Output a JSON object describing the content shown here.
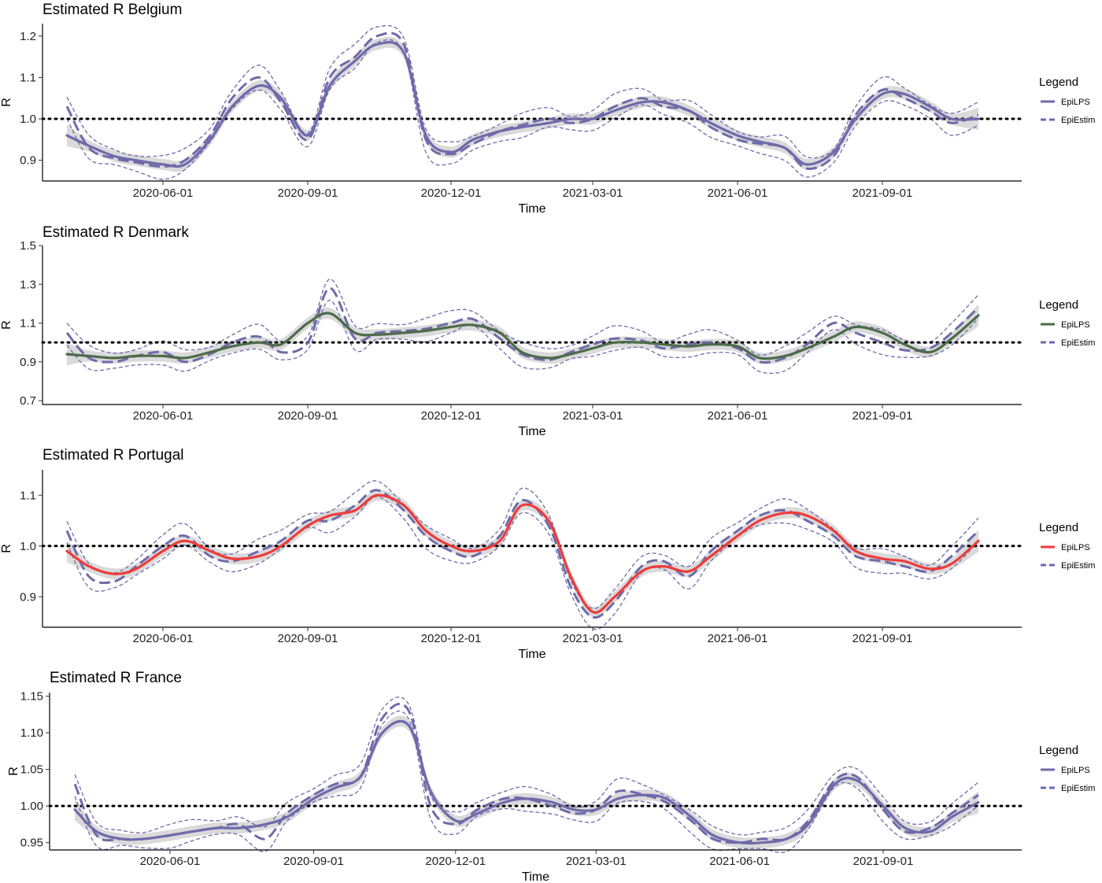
{
  "chart_data": [
    {
      "type": "line",
      "title": "Estimated R Belgium",
      "xlabel": "Time",
      "ylabel": "R",
      "ylim": [
        0.85,
        1.23
      ],
      "yticks": [
        "0.9",
        "1.0",
        "1.1",
        "1.2"
      ],
      "xticks": [
        "2020-06-01",
        "2020-09-01",
        "2020-12-01",
        "2021-03-01",
        "2021-06-01",
        "2021-09-01"
      ],
      "reference_line": 1.0,
      "legend": {
        "title": "Legend",
        "position": "right",
        "items": [
          "EpiLPS",
          "EpiEstim"
        ]
      },
      "colors": {
        "epilps": "#6e6aaa",
        "epiestim": "#6e6aaa",
        "band": "#d3d3d3"
      },
      "x": [
        "2020-04-01",
        "2020-04-15",
        "2020-05-01",
        "2020-05-15",
        "2020-06-01",
        "2020-06-15",
        "2020-07-01",
        "2020-07-15",
        "2020-08-01",
        "2020-08-15",
        "2020-09-01",
        "2020-09-15",
        "2020-10-01",
        "2020-10-15",
        "2020-11-01",
        "2020-11-15",
        "2020-12-01",
        "2020-12-15",
        "2021-01-01",
        "2021-01-15",
        "2021-02-01",
        "2021-02-15",
        "2021-03-01",
        "2021-03-15",
        "2021-04-01",
        "2021-04-15",
        "2021-05-01",
        "2021-05-15",
        "2021-06-01",
        "2021-06-15",
        "2021-07-01",
        "2021-07-15",
        "2021-08-01",
        "2021-08-15",
        "2021-09-01",
        "2021-09-15",
        "2021-10-01",
        "2021-10-15",
        "2021-11-01"
      ],
      "series": [
        {
          "name": "EpiLPS",
          "values": [
            0.96,
            0.935,
            0.91,
            0.9,
            0.89,
            0.89,
            0.95,
            1.03,
            1.08,
            1.05,
            0.96,
            1.08,
            1.14,
            1.18,
            1.16,
            0.96,
            0.92,
            0.95,
            0.97,
            0.98,
            0.99,
            1.0,
            1.0,
            1.02,
            1.04,
            1.04,
            1.02,
            0.99,
            0.96,
            0.945,
            0.93,
            0.89,
            0.92,
            1.0,
            1.06,
            1.06,
            1.03,
            1.0,
            1.0
          ]
        },
        {
          "name": "EpiEstim",
          "values": [
            1.03,
            0.93,
            0.905,
            0.895,
            0.885,
            0.9,
            0.96,
            1.05,
            1.1,
            1.04,
            0.95,
            1.1,
            1.15,
            1.2,
            1.18,
            0.95,
            0.915,
            0.94,
            0.97,
            0.985,
            1.0,
            0.99,
            1.0,
            1.03,
            1.05,
            1.03,
            1.02,
            0.98,
            0.95,
            0.94,
            0.93,
            0.88,
            0.91,
            1.01,
            1.07,
            1.05,
            1.02,
            0.99,
            1.01
          ]
        }
      ]
    },
    {
      "type": "line",
      "title": "Estimated R Denmark",
      "xlabel": "Time",
      "ylabel": "R",
      "ylim": [
        0.68,
        1.5
      ],
      "yticks": [
        "0.7",
        "0.9",
        "1.1",
        "1.3",
        "1.5"
      ],
      "xticks": [
        "2020-06-01",
        "2020-09-01",
        "2020-12-01",
        "2021-03-01",
        "2021-06-01",
        "2021-09-01"
      ],
      "reference_line": 1.0,
      "legend": {
        "title": "Legend",
        "position": "right",
        "items": [
          "EpiLPS",
          "EpiEstim"
        ]
      },
      "colors": {
        "epilps": "#4c6b4a",
        "epiestim": "#6e6aaa",
        "band": "#d3d3d3"
      },
      "x": [
        "2020-04-01",
        "2020-04-15",
        "2020-05-01",
        "2020-05-15",
        "2020-06-01",
        "2020-06-15",
        "2020-07-01",
        "2020-07-15",
        "2020-08-01",
        "2020-08-15",
        "2020-09-01",
        "2020-09-15",
        "2020-10-01",
        "2020-10-15",
        "2020-11-01",
        "2020-11-15",
        "2020-12-01",
        "2020-12-15",
        "2021-01-01",
        "2021-01-15",
        "2021-02-01",
        "2021-02-15",
        "2021-03-01",
        "2021-03-15",
        "2021-04-01",
        "2021-04-15",
        "2021-05-01",
        "2021-05-15",
        "2021-06-01",
        "2021-06-15",
        "2021-07-01",
        "2021-07-15",
        "2021-08-01",
        "2021-08-15",
        "2021-09-01",
        "2021-09-15",
        "2021-10-01",
        "2021-10-15",
        "2021-11-01"
      ],
      "series": [
        {
          "name": "EpiLPS",
          "values": [
            0.94,
            0.93,
            0.92,
            0.93,
            0.93,
            0.92,
            0.95,
            0.98,
            1.0,
            0.99,
            1.1,
            1.15,
            1.05,
            1.04,
            1.05,
            1.06,
            1.08,
            1.09,
            1.05,
            0.95,
            0.92,
            0.94,
            0.97,
            1.0,
            1.0,
            0.99,
            0.98,
            0.99,
            0.98,
            0.92,
            0.93,
            0.97,
            1.03,
            1.08,
            1.05,
            0.99,
            0.95,
            1.02,
            1.14
          ]
        },
        {
          "name": "EpiEstim",
          "values": [
            1.05,
            0.92,
            0.9,
            0.93,
            0.95,
            0.9,
            0.94,
            1.0,
            1.03,
            0.95,
            1.0,
            1.28,
            1.02,
            1.05,
            1.06,
            1.07,
            1.1,
            1.12,
            1.02,
            0.94,
            0.91,
            0.95,
            0.99,
            1.02,
            1.01,
            0.97,
            0.99,
            1.0,
            0.97,
            0.9,
            0.92,
            0.99,
            1.1,
            1.05,
            1.0,
            0.96,
            0.97,
            1.05,
            1.18
          ]
        }
      ]
    },
    {
      "type": "line",
      "title": "Estimated R Portugal",
      "xlabel": "Time",
      "ylabel": "R",
      "ylim": [
        0.84,
        1.15
      ],
      "yticks": [
        "0.9",
        "1.0",
        "1.1"
      ],
      "xticks": [
        "2020-06-01",
        "2020-09-01",
        "2020-12-01",
        "2021-03-01",
        "2021-06-01",
        "2021-09-01"
      ],
      "reference_line": 1.0,
      "legend": {
        "title": "Legend",
        "position": "right",
        "items": [
          "EpiLPS",
          "EpiEstim"
        ]
      },
      "colors": {
        "epilps": "#ee3b3b",
        "epiestim": "#6e6aaa",
        "band": "#d3d3d3"
      },
      "x": [
        "2020-04-01",
        "2020-04-15",
        "2020-05-01",
        "2020-05-15",
        "2020-06-01",
        "2020-06-15",
        "2020-07-01",
        "2020-07-15",
        "2020-08-01",
        "2020-08-15",
        "2020-09-01",
        "2020-09-15",
        "2020-10-01",
        "2020-10-15",
        "2020-11-01",
        "2020-11-15",
        "2020-12-01",
        "2020-12-15",
        "2021-01-01",
        "2021-01-15",
        "2021-02-01",
        "2021-02-15",
        "2021-03-01",
        "2021-03-15",
        "2021-04-01",
        "2021-04-15",
        "2021-05-01",
        "2021-05-15",
        "2021-06-01",
        "2021-06-15",
        "2021-07-01",
        "2021-07-15",
        "2021-08-01",
        "2021-08-15",
        "2021-09-01",
        "2021-09-15",
        "2021-10-01",
        "2021-10-15",
        "2021-11-01"
      ],
      "series": [
        {
          "name": "EpiLPS",
          "values": [
            0.99,
            0.96,
            0.945,
            0.955,
            0.99,
            1.01,
            0.99,
            0.975,
            0.98,
            1.0,
            1.04,
            1.06,
            1.07,
            1.1,
            1.08,
            1.03,
            1.0,
            0.99,
            1.01,
            1.08,
            1.05,
            0.94,
            0.87,
            0.9,
            0.95,
            0.96,
            0.95,
            0.98,
            1.02,
            1.05,
            1.065,
            1.06,
            1.03,
            0.99,
            0.975,
            0.97,
            0.955,
            0.965,
            1.01
          ]
        },
        {
          "name": "EpiEstim",
          "values": [
            1.03,
            0.94,
            0.93,
            0.96,
            1.0,
            1.02,
            0.98,
            0.97,
            0.99,
            1.01,
            1.05,
            1.05,
            1.08,
            1.11,
            1.07,
            1.02,
            0.99,
            0.98,
            1.02,
            1.09,
            1.04,
            0.92,
            0.86,
            0.89,
            0.96,
            0.97,
            0.94,
            0.99,
            1.03,
            1.06,
            1.07,
            1.05,
            1.02,
            0.98,
            0.97,
            0.96,
            0.95,
            0.98,
            1.03
          ]
        }
      ]
    },
    {
      "type": "line",
      "title": "Estimated R France",
      "xlabel": "Time",
      "ylabel": "R",
      "ylim": [
        0.94,
        1.155
      ],
      "yticks": [
        "0.95",
        "1.00",
        "1.05",
        "1.10",
        "1.15"
      ],
      "xticks": [
        "2020-06-01",
        "2020-09-01",
        "2020-12-01",
        "2021-03-01",
        "2021-06-01",
        "2021-09-01"
      ],
      "reference_line": 1.0,
      "legend": {
        "title": "Legend",
        "position": "right",
        "items": [
          "EpiLPS",
          "EpiEstim"
        ]
      },
      "colors": {
        "epilps": "#6e6aaa",
        "epiestim": "#6e6aaa",
        "band": "#d3d3d3"
      },
      "x": [
        "2020-04-01",
        "2020-04-15",
        "2020-05-01",
        "2020-05-15",
        "2020-06-01",
        "2020-06-15",
        "2020-07-01",
        "2020-07-15",
        "2020-08-01",
        "2020-08-15",
        "2020-09-01",
        "2020-09-15",
        "2020-10-01",
        "2020-10-15",
        "2020-11-01",
        "2020-11-15",
        "2020-12-01",
        "2020-12-15",
        "2021-01-01",
        "2021-01-15",
        "2021-02-01",
        "2021-02-15",
        "2021-03-01",
        "2021-03-15",
        "2021-04-01",
        "2021-04-15",
        "2021-05-01",
        "2021-05-15",
        "2021-06-01",
        "2021-06-15",
        "2021-07-01",
        "2021-07-15",
        "2021-08-01",
        "2021-08-15",
        "2021-09-01",
        "2021-09-15",
        "2021-10-01",
        "2021-10-15",
        "2021-11-01"
      ],
      "series": [
        {
          "name": "EpiLPS",
          "values": [
            0.995,
            0.965,
            0.955,
            0.955,
            0.96,
            0.965,
            0.97,
            0.97,
            0.975,
            0.985,
            1.01,
            1.025,
            1.04,
            1.1,
            1.11,
            1.02,
            0.98,
            0.99,
            1.005,
            1.01,
            1.005,
            0.995,
            0.995,
            1.01,
            1.015,
            1.01,
            0.985,
            0.96,
            0.95,
            0.95,
            0.955,
            0.975,
            1.03,
            1.035,
            1.0,
            0.97,
            0.965,
            0.985,
            1.005
          ]
        },
        {
          "name": "EpiEstim",
          "values": [
            1.03,
            0.96,
            0.955,
            0.955,
            0.96,
            0.965,
            0.97,
            0.975,
            0.955,
            0.99,
            1.015,
            1.03,
            1.04,
            1.12,
            1.13,
            1.0,
            0.975,
            0.995,
            1.01,
            1.01,
            1.0,
            0.99,
            0.995,
            1.02,
            1.015,
            1.005,
            0.98,
            0.955,
            0.95,
            0.955,
            0.955,
            0.98,
            1.035,
            1.04,
            0.995,
            0.965,
            0.97,
            0.99,
            1.015
          ]
        }
      ]
    }
  ]
}
